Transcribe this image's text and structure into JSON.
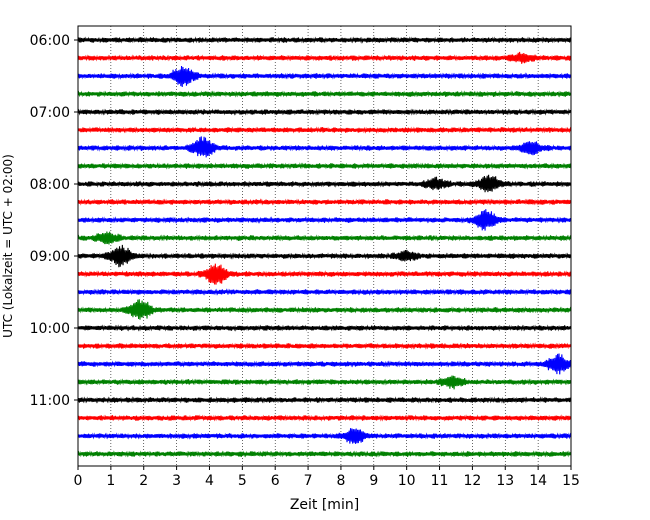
{
  "chart_data": {
    "type": "line",
    "chart_kind": "helicorder seismogram",
    "xlabel": "Zeit  [min]",
    "ylabel": "UTC (Lokalzeit = UTC + 02:00)",
    "xlim": [
      0,
      15
    ],
    "x_ticks": [
      "0",
      "1",
      "2",
      "3",
      "4",
      "5",
      "6",
      "7",
      "8",
      "9",
      "10",
      "11",
      "12",
      "13",
      "14",
      "15"
    ],
    "y_tick_labels": [
      "06:00",
      "07:00",
      "08:00",
      "09:00",
      "10:00",
      "11:00"
    ],
    "grid": "vertical dotted at each minute",
    "trace_interval_minutes": 15,
    "trace_colors": [
      "#000000",
      "#ff0000",
      "#0000ff",
      "#008000"
    ],
    "traces": [
      {
        "start": "06:00",
        "bursts": []
      },
      {
        "start": "06:15",
        "bursts": [
          {
            "minute": 13.5,
            "amp": 1.3
          }
        ]
      },
      {
        "start": "06:30",
        "bursts": [
          {
            "minute": 3.2,
            "amp": 3.0
          }
        ]
      },
      {
        "start": "06:45",
        "bursts": []
      },
      {
        "start": "07:00",
        "bursts": []
      },
      {
        "start": "07:15",
        "bursts": []
      },
      {
        "start": "07:30",
        "bursts": [
          {
            "minute": 3.8,
            "amp": 3.0
          },
          {
            "minute": 13.8,
            "amp": 1.8
          }
        ]
      },
      {
        "start": "07:45",
        "bursts": []
      },
      {
        "start": "08:00",
        "bursts": [
          {
            "minute": 10.9,
            "amp": 1.6
          },
          {
            "minute": 12.5,
            "amp": 2.6
          }
        ]
      },
      {
        "start": "08:15",
        "bursts": []
      },
      {
        "start": "08:30",
        "bursts": [
          {
            "minute": 12.4,
            "amp": 3.0
          }
        ]
      },
      {
        "start": "08:45",
        "bursts": [
          {
            "minute": 0.9,
            "amp": 1.6
          }
        ]
      },
      {
        "start": "09:00",
        "bursts": [
          {
            "minute": 1.3,
            "amp": 3.2
          },
          {
            "minute": 10.0,
            "amp": 1.4
          }
        ]
      },
      {
        "start": "09:15",
        "bursts": [
          {
            "minute": 4.2,
            "amp": 3.2
          }
        ]
      },
      {
        "start": "09:30",
        "bursts": []
      },
      {
        "start": "09:45",
        "bursts": [
          {
            "minute": 1.9,
            "amp": 3.0
          }
        ]
      },
      {
        "start": "10:00",
        "bursts": []
      },
      {
        "start": "10:15",
        "bursts": []
      },
      {
        "start": "10:30",
        "bursts": [
          {
            "minute": 14.6,
            "amp": 2.8
          }
        ]
      },
      {
        "start": "10:45",
        "bursts": [
          {
            "minute": 11.4,
            "amp": 1.8
          }
        ]
      },
      {
        "start": "11:00",
        "bursts": []
      },
      {
        "start": "11:15",
        "bursts": []
      },
      {
        "start": "11:30",
        "bursts": [
          {
            "minute": 8.4,
            "amp": 2.2
          }
        ]
      },
      {
        "start": "11:45",
        "bursts": []
      }
    ]
  }
}
